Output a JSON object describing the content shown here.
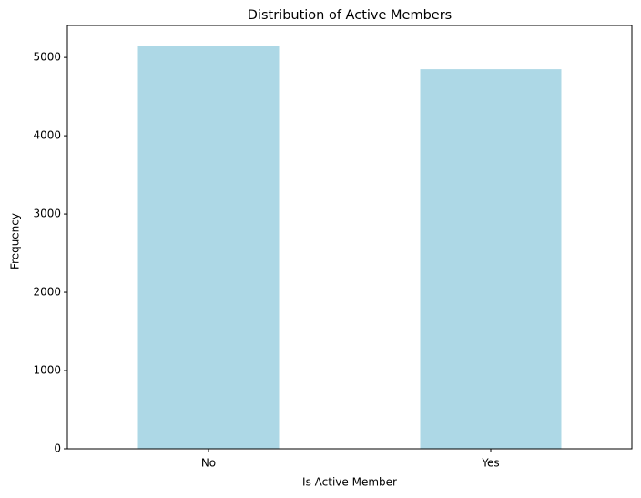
{
  "chart_data": {
    "type": "bar",
    "title": "Distribution of Active Members",
    "x_label": "Is Active Member",
    "y_label": "Frequency",
    "categories": [
      "No",
      "Yes"
    ],
    "values": [
      5151,
      4849
    ],
    "color": "#add8e6",
    "ylim": [
      0,
      5408.55
    ],
    "yticks": [
      0,
      1000,
      2000,
      3000,
      4000,
      5000
    ],
    "grid": false
  }
}
